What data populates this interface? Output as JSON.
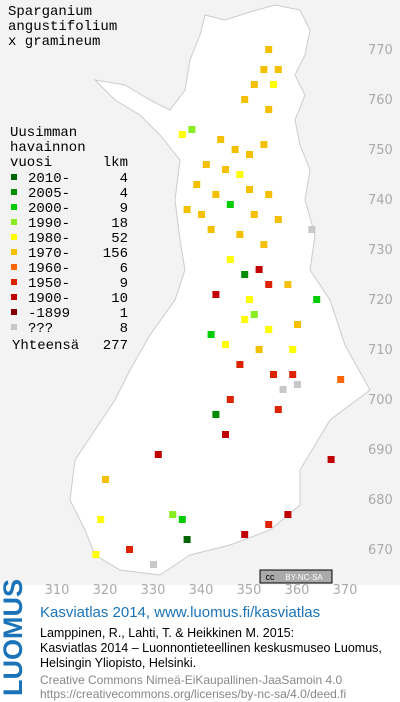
{
  "title": [
    "Sparganium",
    "angustifolium",
    "x gramineum"
  ],
  "legend": {
    "heading": [
      "Uusimman",
      "havainnon",
      "vuosi"
    ],
    "count_heading": "lkm",
    "rows": [
      {
        "label": "2010-",
        "count": 4,
        "color": "#006400"
      },
      {
        "label": "2005-",
        "count": 4,
        "color": "#008c00"
      },
      {
        "label": "2000-",
        "count": 9,
        "color": "#00cc00"
      },
      {
        "label": "1990-",
        "count": 18,
        "color": "#88ee22"
      },
      {
        "label": "1980-",
        "count": 52,
        "color": "#ffff00"
      },
      {
        "label": "1970-",
        "count": 156,
        "color": "#f5c000"
      },
      {
        "label": "1960-",
        "count": 6,
        "color": "#ff6600"
      },
      {
        "label": "1950-",
        "count": 9,
        "color": "#dd2200"
      },
      {
        "label": "1900-",
        "count": 10,
        "color": "#c00000"
      },
      {
        "label": "-1899",
        "count": 1,
        "color": "#800000"
      },
      {
        "label": "???",
        "count": 8,
        "color": "#c8c8c8"
      }
    ],
    "total_label": "Yhteensä",
    "total": 277
  },
  "map": {
    "xticks": [
      310,
      320,
      330,
      340,
      350,
      360,
      370
    ],
    "yticks": [
      670,
      680,
      690,
      700,
      710,
      720,
      730,
      740,
      750,
      760,
      770
    ],
    "points": [
      [
        354,
        770,
        5
      ],
      [
        353,
        766,
        5
      ],
      [
        356,
        766,
        5
      ],
      [
        351,
        763,
        5
      ],
      [
        355,
        763,
        4
      ],
      [
        349,
        760,
        5
      ],
      [
        354,
        758,
        5
      ],
      [
        338,
        754,
        3
      ],
      [
        336,
        753,
        4
      ],
      [
        344,
        752,
        5
      ],
      [
        347,
        750,
        5
      ],
      [
        350,
        749,
        5
      ],
      [
        353,
        751,
        5
      ],
      [
        341,
        747,
        5
      ],
      [
        345,
        746,
        5
      ],
      [
        348,
        745,
        4
      ],
      [
        339,
        743,
        5
      ],
      [
        343,
        741,
        5
      ],
      [
        350,
        742,
        5
      ],
      [
        354,
        741,
        5
      ],
      [
        337,
        738,
        5
      ],
      [
        340,
        737,
        5
      ],
      [
        346,
        739,
        2
      ],
      [
        351,
        737,
        5
      ],
      [
        356,
        736,
        5
      ],
      [
        363,
        734,
        10
      ],
      [
        342,
        734,
        5
      ],
      [
        348,
        733,
        5
      ],
      [
        353,
        731,
        5
      ],
      [
        346,
        728,
        4
      ],
      [
        352,
        726,
        8
      ],
      [
        349,
        725,
        1
      ],
      [
        358,
        723,
        5
      ],
      [
        354,
        723,
        7
      ],
      [
        343,
        721,
        8
      ],
      [
        350,
        720,
        4
      ],
      [
        364,
        720,
        2
      ],
      [
        351,
        717,
        3
      ],
      [
        349,
        716,
        4
      ],
      [
        354,
        714,
        4
      ],
      [
        360,
        715,
        5
      ],
      [
        342,
        713,
        2
      ],
      [
        345,
        711,
        4
      ],
      [
        352,
        710,
        5
      ],
      [
        359,
        710,
        4
      ],
      [
        348,
        707,
        7
      ],
      [
        355,
        705,
        7
      ],
      [
        359,
        705,
        7
      ],
      [
        369,
        704,
        6
      ],
      [
        357,
        702,
        10
      ],
      [
        360,
        703,
        10
      ],
      [
        346,
        700,
        7
      ],
      [
        343,
        697,
        1
      ],
      [
        356,
        698,
        7
      ],
      [
        345,
        693,
        8
      ],
      [
        331,
        689,
        8
      ],
      [
        367,
        688,
        8
      ],
      [
        320,
        684,
        5
      ],
      [
        319,
        676,
        4
      ],
      [
        334,
        677,
        3
      ],
      [
        336,
        676,
        2
      ],
      [
        337,
        672,
        0
      ],
      [
        354,
        675,
        7
      ],
      [
        358,
        677,
        8
      ],
      [
        349,
        673,
        8
      ],
      [
        330,
        667,
        10
      ],
      [
        318,
        669,
        4
      ],
      [
        325,
        670,
        7
      ]
    ]
  },
  "badge": {
    "cc": "cc",
    "license": "BY-NC-SA"
  },
  "footer": {
    "brand": "LUOMUS",
    "site": "Kasviatlas 2014, www.luomus.fi/kasviatlas",
    "citation": [
      "Lamppinen, R., Lahti, T. & Heikkinen M. 2015:",
      "Kasviatlas 2014 – Luonnontieteellinen keskusmuseo Luomus,",
      "Helsingin Yliopisto, Helsinki."
    ],
    "license": [
      "Creative Commons Nimeä-EiKaupallinen-JaaSamoin 4.0",
      "https://creativecommons.org/licenses/by-nc-sa/4.0/deed.fi"
    ]
  }
}
